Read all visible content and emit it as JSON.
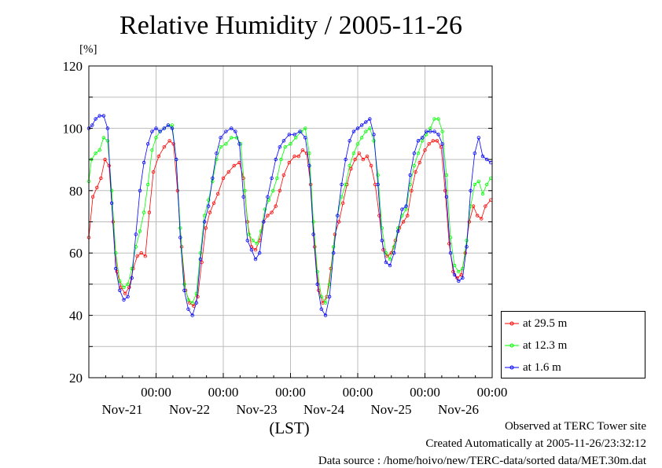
{
  "chart_data": {
    "type": "line",
    "title": "Relative Humidity / 2005-11-26",
    "ylabel": "[%]",
    "xlabel": "(LST)",
    "ylim": [
      20,
      120
    ],
    "yticks": [
      20,
      40,
      60,
      80,
      100,
      120
    ],
    "xlim": [
      20.0,
      26.0
    ],
    "x_unit": "day of November 2005",
    "xtick_labels": [
      {
        "x": 21.0,
        "time": "00:00",
        "date": "Nov-21"
      },
      {
        "x": 22.0,
        "time": "00:00",
        "date": "Nov-22"
      },
      {
        "x": 23.0,
        "time": "00:00",
        "date": "Nov-23"
      },
      {
        "x": 24.0,
        "time": "00:00",
        "date": "Nov-24"
      },
      {
        "x": 25.0,
        "time": "00:00",
        "date": "Nov-25"
      },
      {
        "x": 26.0,
        "time": "00:00",
        "date": "Nov-26"
      }
    ],
    "grid": true,
    "legend_position": "bottom-right",
    "series": [
      {
        "name": "at 29.5 m",
        "color": "#ff0000",
        "points": [
          [
            20.0,
            65
          ],
          [
            20.06,
            78
          ],
          [
            20.12,
            81
          ],
          [
            20.18,
            84
          ],
          [
            20.24,
            90
          ],
          [
            20.3,
            88
          ],
          [
            20.36,
            70
          ],
          [
            20.42,
            54
          ],
          [
            20.48,
            49
          ],
          [
            20.54,
            47
          ],
          [
            20.6,
            49
          ],
          [
            20.66,
            55
          ],
          [
            20.72,
            59
          ],
          [
            20.78,
            60
          ],
          [
            20.84,
            59
          ],
          [
            20.9,
            73
          ],
          [
            20.96,
            86
          ],
          [
            21.04,
            91
          ],
          [
            21.12,
            94
          ],
          [
            21.2,
            96
          ],
          [
            21.26,
            95
          ],
          [
            21.32,
            80
          ],
          [
            21.38,
            62
          ],
          [
            21.44,
            48
          ],
          [
            21.5,
            44
          ],
          [
            21.56,
            43
          ],
          [
            21.62,
            46
          ],
          [
            21.68,
            57
          ],
          [
            21.74,
            68
          ],
          [
            21.8,
            73
          ],
          [
            21.86,
            76
          ],
          [
            21.92,
            79
          ],
          [
            22.0,
            84
          ],
          [
            22.08,
            86
          ],
          [
            22.16,
            88
          ],
          [
            22.24,
            89
          ],
          [
            22.3,
            84
          ],
          [
            22.36,
            70
          ],
          [
            22.42,
            62
          ],
          [
            22.48,
            61
          ],
          [
            22.54,
            64
          ],
          [
            22.6,
            70
          ],
          [
            22.66,
            72
          ],
          [
            22.72,
            73
          ],
          [
            22.78,
            75
          ],
          [
            22.84,
            80
          ],
          [
            22.9,
            85
          ],
          [
            22.98,
            89
          ],
          [
            23.06,
            91
          ],
          [
            23.12,
            91
          ],
          [
            23.18,
            93
          ],
          [
            23.24,
            92
          ],
          [
            23.3,
            82
          ],
          [
            23.36,
            62
          ],
          [
            23.42,
            48
          ],
          [
            23.48,
            44
          ],
          [
            23.54,
            46
          ],
          [
            23.6,
            55
          ],
          [
            23.66,
            66
          ],
          [
            23.72,
            70
          ],
          [
            23.78,
            76
          ],
          [
            23.84,
            82
          ],
          [
            23.9,
            87
          ],
          [
            23.96,
            90
          ],
          [
            24.02,
            92
          ],
          [
            24.08,
            90
          ],
          [
            24.14,
            91
          ],
          [
            24.2,
            88
          ],
          [
            24.26,
            82
          ],
          [
            24.32,
            72
          ],
          [
            24.38,
            61
          ],
          [
            24.44,
            59
          ],
          [
            24.5,
            60
          ],
          [
            24.56,
            64
          ],
          [
            24.62,
            68
          ],
          [
            24.68,
            70
          ],
          [
            24.74,
            72
          ],
          [
            24.8,
            80
          ],
          [
            24.86,
            86
          ],
          [
            24.92,
            89
          ],
          [
            25.0,
            93
          ],
          [
            25.06,
            95
          ],
          [
            25.12,
            96
          ],
          [
            25.18,
            96
          ],
          [
            25.24,
            94
          ],
          [
            25.3,
            80
          ],
          [
            25.36,
            63
          ],
          [
            25.42,
            54
          ],
          [
            25.48,
            52
          ],
          [
            25.54,
            53
          ],
          [
            25.6,
            60
          ],
          [
            25.66,
            70
          ],
          [
            25.72,
            75
          ],
          [
            25.78,
            72
          ],
          [
            25.84,
            71
          ],
          [
            25.9,
            75
          ],
          [
            25.98,
            77
          ]
        ]
      },
      {
        "name": "at 12.3 m",
        "color": "#00ff00",
        "points": [
          [
            20.0,
            83
          ],
          [
            20.04,
            90
          ],
          [
            20.1,
            92
          ],
          [
            20.16,
            93
          ],
          [
            20.22,
            97
          ],
          [
            20.28,
            96
          ],
          [
            20.34,
            80
          ],
          [
            20.4,
            60
          ],
          [
            20.46,
            51
          ],
          [
            20.52,
            49
          ],
          [
            20.58,
            50
          ],
          [
            20.64,
            55
          ],
          [
            20.7,
            62
          ],
          [
            20.76,
            67
          ],
          [
            20.82,
            73
          ],
          [
            20.88,
            82
          ],
          [
            20.94,
            93
          ],
          [
            21.0,
            97
          ],
          [
            21.06,
            99
          ],
          [
            21.12,
            100
          ],
          [
            21.18,
            101
          ],
          [
            21.24,
            101
          ],
          [
            21.3,
            90
          ],
          [
            21.36,
            68
          ],
          [
            21.42,
            50
          ],
          [
            21.48,
            45
          ],
          [
            21.54,
            44
          ],
          [
            21.6,
            47
          ],
          [
            21.66,
            60
          ],
          [
            21.72,
            72
          ],
          [
            21.78,
            77
          ],
          [
            21.84,
            83
          ],
          [
            21.9,
            90
          ],
          [
            21.96,
            94
          ],
          [
            22.04,
            95
          ],
          [
            22.12,
            97
          ],
          [
            22.2,
            97
          ],
          [
            22.26,
            95
          ],
          [
            22.32,
            80
          ],
          [
            22.38,
            66
          ],
          [
            22.44,
            64
          ],
          [
            22.5,
            63
          ],
          [
            22.56,
            67
          ],
          [
            22.62,
            74
          ],
          [
            22.68,
            77
          ],
          [
            22.74,
            80
          ],
          [
            22.8,
            84
          ],
          [
            22.86,
            90
          ],
          [
            22.92,
            94
          ],
          [
            23.0,
            95
          ],
          [
            23.08,
            97
          ],
          [
            23.16,
            99
          ],
          [
            23.22,
            100
          ],
          [
            23.28,
            92
          ],
          [
            23.34,
            70
          ],
          [
            23.4,
            54
          ],
          [
            23.46,
            46
          ],
          [
            23.52,
            44
          ],
          [
            23.58,
            50
          ],
          [
            23.64,
            62
          ],
          [
            23.7,
            72
          ],
          [
            23.76,
            78
          ],
          [
            23.82,
            82
          ],
          [
            23.88,
            88
          ],
          [
            23.94,
            92
          ],
          [
            24.0,
            95
          ],
          [
            24.06,
            97
          ],
          [
            24.12,
            99
          ],
          [
            24.18,
            100
          ],
          [
            24.24,
            96
          ],
          [
            24.3,
            85
          ],
          [
            24.36,
            68
          ],
          [
            24.42,
            60
          ],
          [
            24.48,
            58
          ],
          [
            24.54,
            62
          ],
          [
            24.6,
            68
          ],
          [
            24.66,
            72
          ],
          [
            24.72,
            74
          ],
          [
            24.78,
            82
          ],
          [
            24.84,
            88
          ],
          [
            24.9,
            92
          ],
          [
            24.96,
            96
          ],
          [
            25.02,
            98
          ],
          [
            25.08,
            100
          ],
          [
            25.14,
            103
          ],
          [
            25.2,
            103
          ],
          [
            25.26,
            99
          ],
          [
            25.32,
            85
          ],
          [
            25.38,
            65
          ],
          [
            25.44,
            56
          ],
          [
            25.5,
            54
          ],
          [
            25.56,
            55
          ],
          [
            25.62,
            64
          ],
          [
            25.68,
            75
          ],
          [
            25.74,
            82
          ],
          [
            25.8,
            83
          ],
          [
            25.86,
            79
          ],
          [
            25.92,
            82
          ],
          [
            25.98,
            84
          ]
        ]
      },
      {
        "name": "at 1.6 m",
        "color": "#0000ff",
        "points": [
          [
            20.0,
            100
          ],
          [
            20.05,
            101
          ],
          [
            20.1,
            103
          ],
          [
            20.16,
            104
          ],
          [
            20.22,
            104
          ],
          [
            20.28,
            100
          ],
          [
            20.34,
            76
          ],
          [
            20.4,
            55
          ],
          [
            20.46,
            48
          ],
          [
            20.52,
            45
          ],
          [
            20.58,
            46
          ],
          [
            20.64,
            52
          ],
          [
            20.7,
            66
          ],
          [
            20.76,
            80
          ],
          [
            20.82,
            89
          ],
          [
            20.88,
            95
          ],
          [
            20.94,
            99
          ],
          [
            21.0,
            100
          ],
          [
            21.06,
            99
          ],
          [
            21.12,
            100
          ],
          [
            21.18,
            101
          ],
          [
            21.24,
            100
          ],
          [
            21.3,
            90
          ],
          [
            21.36,
            65
          ],
          [
            21.42,
            48
          ],
          [
            21.48,
            42
          ],
          [
            21.54,
            40
          ],
          [
            21.6,
            44
          ],
          [
            21.66,
            58
          ],
          [
            21.72,
            70
          ],
          [
            21.78,
            75
          ],
          [
            21.84,
            84
          ],
          [
            21.9,
            92
          ],
          [
            21.96,
            97
          ],
          [
            22.04,
            99
          ],
          [
            22.12,
            100
          ],
          [
            22.18,
            99
          ],
          [
            22.24,
            95
          ],
          [
            22.3,
            78
          ],
          [
            22.36,
            64
          ],
          [
            22.42,
            61
          ],
          [
            22.48,
            58
          ],
          [
            22.54,
            60
          ],
          [
            22.6,
            70
          ],
          [
            22.66,
            78
          ],
          [
            22.72,
            84
          ],
          [
            22.78,
            90
          ],
          [
            22.84,
            94
          ],
          [
            22.9,
            96
          ],
          [
            22.98,
            98
          ],
          [
            23.06,
            98
          ],
          [
            23.14,
            99
          ],
          [
            23.22,
            97
          ],
          [
            23.28,
            88
          ],
          [
            23.34,
            66
          ],
          [
            23.4,
            50
          ],
          [
            23.46,
            42
          ],
          [
            23.52,
            40
          ],
          [
            23.58,
            46
          ],
          [
            23.64,
            60
          ],
          [
            23.7,
            72
          ],
          [
            23.76,
            82
          ],
          [
            23.82,
            90
          ],
          [
            23.88,
            96
          ],
          [
            23.94,
            99
          ],
          [
            24.0,
            100
          ],
          [
            24.06,
            101
          ],
          [
            24.12,
            102
          ],
          [
            24.18,
            103
          ],
          [
            24.24,
            98
          ],
          [
            24.3,
            82
          ],
          [
            24.36,
            64
          ],
          [
            24.42,
            57
          ],
          [
            24.48,
            56
          ],
          [
            24.54,
            60
          ],
          [
            24.6,
            67
          ],
          [
            24.66,
            74
          ],
          [
            24.72,
            75
          ],
          [
            24.78,
            85
          ],
          [
            24.84,
            92
          ],
          [
            24.9,
            96
          ],
          [
            24.96,
            97
          ],
          [
            25.02,
            99
          ],
          [
            25.08,
            99
          ],
          [
            25.14,
            99
          ],
          [
            25.2,
            98
          ],
          [
            25.26,
            95
          ],
          [
            25.32,
            78
          ],
          [
            25.38,
            60
          ],
          [
            25.44,
            53
          ],
          [
            25.5,
            51
          ],
          [
            25.56,
            52
          ],
          [
            25.62,
            62
          ],
          [
            25.68,
            80
          ],
          [
            25.74,
            92
          ],
          [
            25.8,
            97
          ],
          [
            25.86,
            91
          ],
          [
            25.92,
            90
          ],
          [
            25.98,
            89
          ]
        ]
      }
    ]
  },
  "footer": {
    "site": "Observed at TERC Tower site",
    "created": "Created Automatically at 2005-11-26/23:32:12",
    "source": "Data source : /home/hoivo/new/TERC-data/sorted  data/MET.30m.dat"
  }
}
